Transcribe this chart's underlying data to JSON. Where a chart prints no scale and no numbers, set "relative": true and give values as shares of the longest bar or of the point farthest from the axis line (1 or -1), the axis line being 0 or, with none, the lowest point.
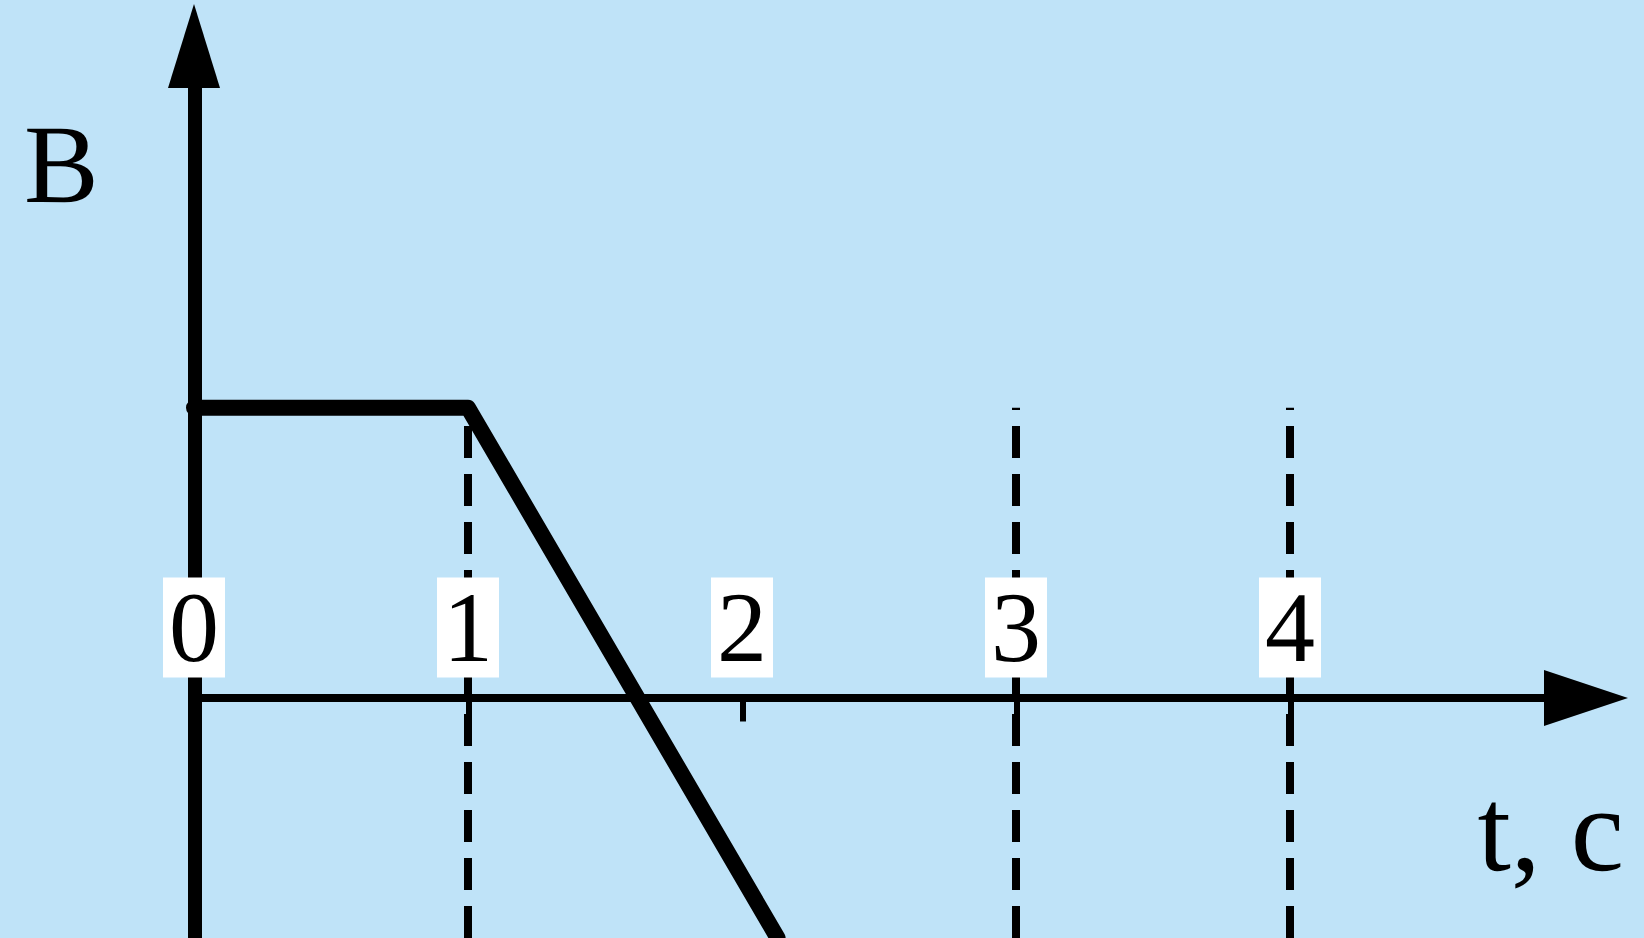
{
  "chart_data": {
    "type": "line",
    "relative": true,
    "ylabel": "B",
    "xlabel": "t, c",
    "x": [
      0,
      1,
      2.13
    ],
    "values": [
      1,
      1,
      -0.83
    ],
    "color": "#000000",
    "xlim": [
      0,
      5
    ],
    "xticks": [
      0,
      1,
      2,
      3,
      4
    ],
    "ref_lines": [
      {
        "axis": "x",
        "value": 1,
        "line_style": "dashed",
        "color": "#000000"
      },
      {
        "axis": "x",
        "value": 3,
        "line_style": "dashed",
        "color": "#000000"
      },
      {
        "axis": "x",
        "value": 4,
        "line_style": "dashed",
        "color": "#000000"
      }
    ],
    "marker": "none",
    "line_style": "solid",
    "grid": false
  }
}
